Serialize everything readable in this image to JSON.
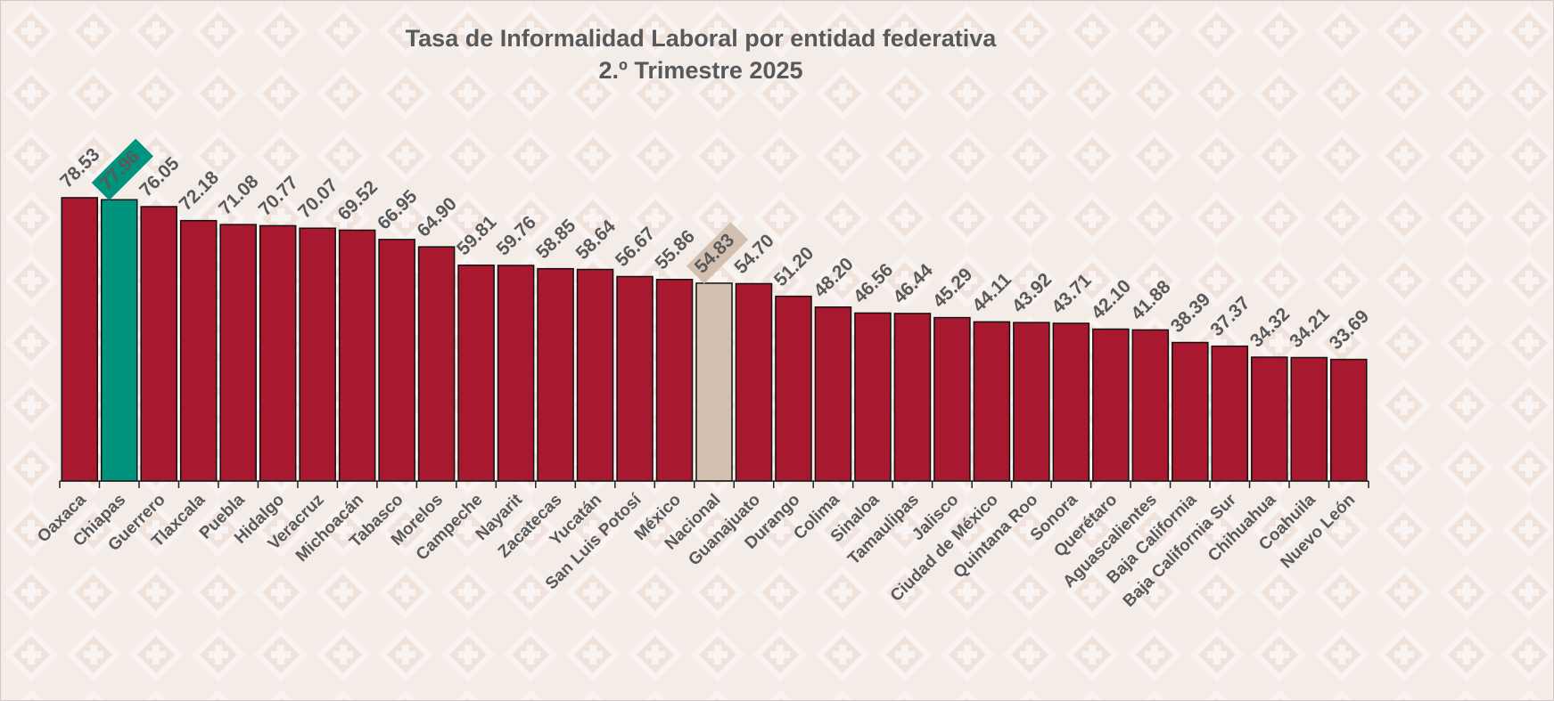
{
  "chart_data": {
    "type": "bar",
    "title": "Tasa de Informalidad Laboral por entidad federativa",
    "subtitle": "2.º Trimestre 2025",
    "categories": [
      "Oaxaca",
      "Chiapas",
      "Guerrero",
      "Tlaxcala",
      "Puebla",
      "Hidalgo",
      "Veracruz",
      "Michoacán",
      "Tabasco",
      "Morelos",
      "Campeche",
      "Nayarit",
      "Zacatecas",
      "Yucatán",
      "San Luis Potosí",
      "México",
      "Nacional",
      "Guanajuato",
      "Durango",
      "Colima",
      "Sinaloa",
      "Tamaulipas",
      "Jalisco",
      "Ciudad de México",
      "Quintana Roo",
      "Sonora",
      "Querétaro",
      "Aguascalientes",
      "Baja California",
      "Baja California Sur",
      "Chihuahua",
      "Coahuila",
      "Nuevo León"
    ],
    "values": [
      78.53,
      77.96,
      76.05,
      72.18,
      71.08,
      70.77,
      70.07,
      69.52,
      66.95,
      64.9,
      59.81,
      59.76,
      58.85,
      58.64,
      56.67,
      55.86,
      54.83,
      54.7,
      51.2,
      48.2,
      46.56,
      46.44,
      45.29,
      44.11,
      43.92,
      43.71,
      42.1,
      41.88,
      38.39,
      37.37,
      34.32,
      34.21,
      33.69
    ],
    "value_labels": [
      "78.53",
      "77.96",
      "76.05",
      "72.18",
      "71.08",
      "70.77",
      "70.07",
      "69.52",
      "66.95",
      "64.90",
      "59.81",
      "59.76",
      "58.85",
      "58.64",
      "56.67",
      "55.86",
      "54.83",
      "54.70",
      "51.20",
      "48.20",
      "46.56",
      "46.44",
      "45.29",
      "44.11",
      "43.92",
      "43.71",
      "42.10",
      "41.88",
      "38.39",
      "37.37",
      "34.32",
      "34.21",
      "33.69"
    ],
    "color": "#a8182e",
    "colors": [
      "#a8182e",
      "#00937e",
      "#a8182e",
      "#a8182e",
      "#a8182e",
      "#a8182e",
      "#a8182e",
      "#a8182e",
      "#a8182e",
      "#a8182e",
      "#a8182e",
      "#a8182e",
      "#a8182e",
      "#a8182e",
      "#a8182e",
      "#a8182e",
      "#d3c0b0",
      "#a8182e",
      "#a8182e",
      "#a8182e",
      "#a8182e",
      "#a8182e",
      "#a8182e",
      "#a8182e",
      "#a8182e",
      "#a8182e",
      "#a8182e",
      "#a8182e",
      "#a8182e",
      "#a8182e",
      "#a8182e",
      "#a8182e",
      "#a8182e"
    ],
    "highlight": [
      1,
      16
    ],
    "ylim": [
      0,
      100
    ]
  }
}
